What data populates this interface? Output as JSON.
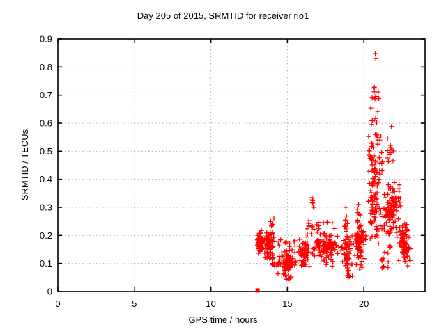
{
  "window": {
    "title": "Day 205 of 2015, SRMTID for receiver rio1"
  },
  "chart_data": {
    "type": "scatter",
    "title": "Day 205 of 2015, SRMTID for receiver rio1",
    "xlabel": "GPS time / hours",
    "ylabel": "SRMTID / TECUs",
    "series_name": "SRMTID",
    "xlim": [
      0,
      24
    ],
    "ylim": [
      0,
      0.9
    ],
    "xticks": [
      {
        "v": 0,
        "label": "0"
      },
      {
        "v": 5,
        "label": "5"
      },
      {
        "v": 10,
        "label": "10"
      },
      {
        "v": 15,
        "label": "15"
      },
      {
        "v": 20,
        "label": "20"
      }
    ],
    "yticks": [
      {
        "v": 0,
        "label": "0"
      },
      {
        "v": 0.1,
        "label": "0.1"
      },
      {
        "v": 0.2,
        "label": "0.2"
      },
      {
        "v": 0.3,
        "label": "0.3"
      },
      {
        "v": 0.4,
        "label": "0.4"
      },
      {
        "v": 0.5,
        "label": "0.5"
      },
      {
        "v": 0.6,
        "label": "0.6"
      },
      {
        "v": 0.7,
        "label": "0.7"
      },
      {
        "v": 0.8,
        "label": "0.8"
      },
      {
        "v": 0.9,
        "label": "0.9"
      }
    ],
    "grid": {
      "show": true,
      "style": "dotted",
      "color": "#b0b0b0"
    },
    "legend": "none",
    "marker": {
      "shape": "plus",
      "color": "#ff0000",
      "size": 7
    },
    "data_x_extent": [
      13.0,
      23.05
    ],
    "square_point": [
      13.05,
      0.004
    ],
    "extra_points": [
      [
        20.75,
        0.848
      ],
      [
        20.78,
        0.83
      ],
      [
        20.62,
        0.725
      ],
      [
        20.68,
        0.712
      ],
      [
        20.55,
        0.69
      ],
      [
        20.72,
        0.687
      ],
      [
        16.62,
        0.335
      ],
      [
        21.8,
        0.588
      ],
      [
        18.82,
        0.3
      ],
      [
        19.65,
        0.31
      ],
      [
        22.3,
        0.38
      ],
      [
        15.1,
        0.04
      ]
    ],
    "point_clusters": [
      {
        "x0": 13.02,
        "x1": 13.4,
        "y0": 0.115,
        "y1": 0.235,
        "n": 48,
        "dist": "normal"
      },
      {
        "x0": 13.35,
        "x1": 14.25,
        "y0": 0.11,
        "y1": 0.225,
        "n": 70,
        "dist": "normal"
      },
      {
        "x0": 13.9,
        "x1": 14.2,
        "y0": 0.215,
        "y1": 0.265,
        "n": 6,
        "dist": "uniform"
      },
      {
        "x0": 14.0,
        "x1": 14.35,
        "y0": 0.075,
        "y1": 0.11,
        "n": 6,
        "dist": "uniform"
      },
      {
        "x0": 14.25,
        "x1": 15.65,
        "y0": 0.055,
        "y1": 0.15,
        "n": 85,
        "dist": "normal"
      },
      {
        "x0": 14.8,
        "x1": 15.45,
        "y0": 0.038,
        "y1": 0.06,
        "n": 8,
        "dist": "uniform"
      },
      {
        "x0": 14.3,
        "x1": 15.6,
        "y0": 0.145,
        "y1": 0.185,
        "n": 10,
        "dist": "uniform"
      },
      {
        "x0": 15.65,
        "x1": 16.5,
        "y0": 0.08,
        "y1": 0.19,
        "n": 55,
        "dist": "normal"
      },
      {
        "x0": 16.25,
        "x1": 16.42,
        "y0": 0.18,
        "y1": 0.255,
        "n": 8,
        "dist": "uniform"
      },
      {
        "x0": 16.55,
        "x1": 16.75,
        "y0": 0.2,
        "y1": 0.34,
        "n": 11,
        "dist": "uniform"
      },
      {
        "x0": 16.55,
        "x1": 18.4,
        "y0": 0.115,
        "y1": 0.22,
        "n": 100,
        "dist": "normal"
      },
      {
        "x0": 16.8,
        "x1": 18.35,
        "y0": 0.22,
        "y1": 0.26,
        "n": 8,
        "dist": "uniform"
      },
      {
        "x0": 17.3,
        "x1": 18.3,
        "y0": 0.09,
        "y1": 0.115,
        "n": 7,
        "dist": "uniform"
      },
      {
        "x0": 18.4,
        "x1": 19.35,
        "y0": 0.08,
        "y1": 0.21,
        "n": 55,
        "dist": "normal"
      },
      {
        "x0": 18.72,
        "x1": 18.92,
        "y0": 0.21,
        "y1": 0.3,
        "n": 7,
        "dist": "uniform"
      },
      {
        "x0": 18.85,
        "x1": 19.4,
        "y0": 0.048,
        "y1": 0.078,
        "n": 8,
        "dist": "uniform"
      },
      {
        "x0": 19.35,
        "x1": 20.15,
        "y0": 0.1,
        "y1": 0.25,
        "n": 62,
        "dist": "normal"
      },
      {
        "x0": 19.55,
        "x1": 19.78,
        "y0": 0.22,
        "y1": 0.31,
        "n": 10,
        "dist": "uniform"
      },
      {
        "x0": 19.4,
        "x1": 19.95,
        "y0": 0.075,
        "y1": 0.1,
        "n": 6,
        "dist": "uniform"
      },
      {
        "x0": 20.15,
        "x1": 21.25,
        "y0": 0.15,
        "y1": 0.5,
        "n": 85,
        "dist": "normal"
      },
      {
        "x0": 20.3,
        "x1": 21.2,
        "y0": 0.42,
        "y1": 0.58,
        "n": 26,
        "dist": "uniform"
      },
      {
        "x0": 20.45,
        "x1": 21.05,
        "y0": 0.58,
        "y1": 0.73,
        "n": 12,
        "dist": "uniform"
      },
      {
        "x0": 20.3,
        "x1": 20.55,
        "y0": 0.47,
        "y1": 0.52,
        "n": 9,
        "dist": "uniform"
      },
      {
        "x0": 21.2,
        "x1": 22.3,
        "y0": 0.12,
        "y1": 0.4,
        "n": 85,
        "dist": "normal"
      },
      {
        "x0": 21.4,
        "x1": 21.95,
        "y0": 0.45,
        "y1": 0.57,
        "n": 11,
        "dist": "uniform"
      },
      {
        "x0": 21.75,
        "x1": 22.15,
        "y0": 0.28,
        "y1": 0.345,
        "n": 16,
        "dist": "uniform"
      },
      {
        "x0": 21.15,
        "x1": 21.6,
        "y0": 0.07,
        "y1": 0.12,
        "n": 8,
        "dist": "uniform"
      },
      {
        "x0": 22.2,
        "x1": 23.0,
        "y0": 0.09,
        "y1": 0.27,
        "n": 65,
        "dist": "normal"
      },
      {
        "x0": 22.25,
        "x1": 22.42,
        "y0": 0.3,
        "y1": 0.38,
        "n": 7,
        "dist": "uniform"
      },
      {
        "x0": 22.78,
        "x1": 23.05,
        "y0": 0.09,
        "y1": 0.16,
        "n": 10,
        "dist": "uniform"
      }
    ],
    "prng_seed": 42
  }
}
